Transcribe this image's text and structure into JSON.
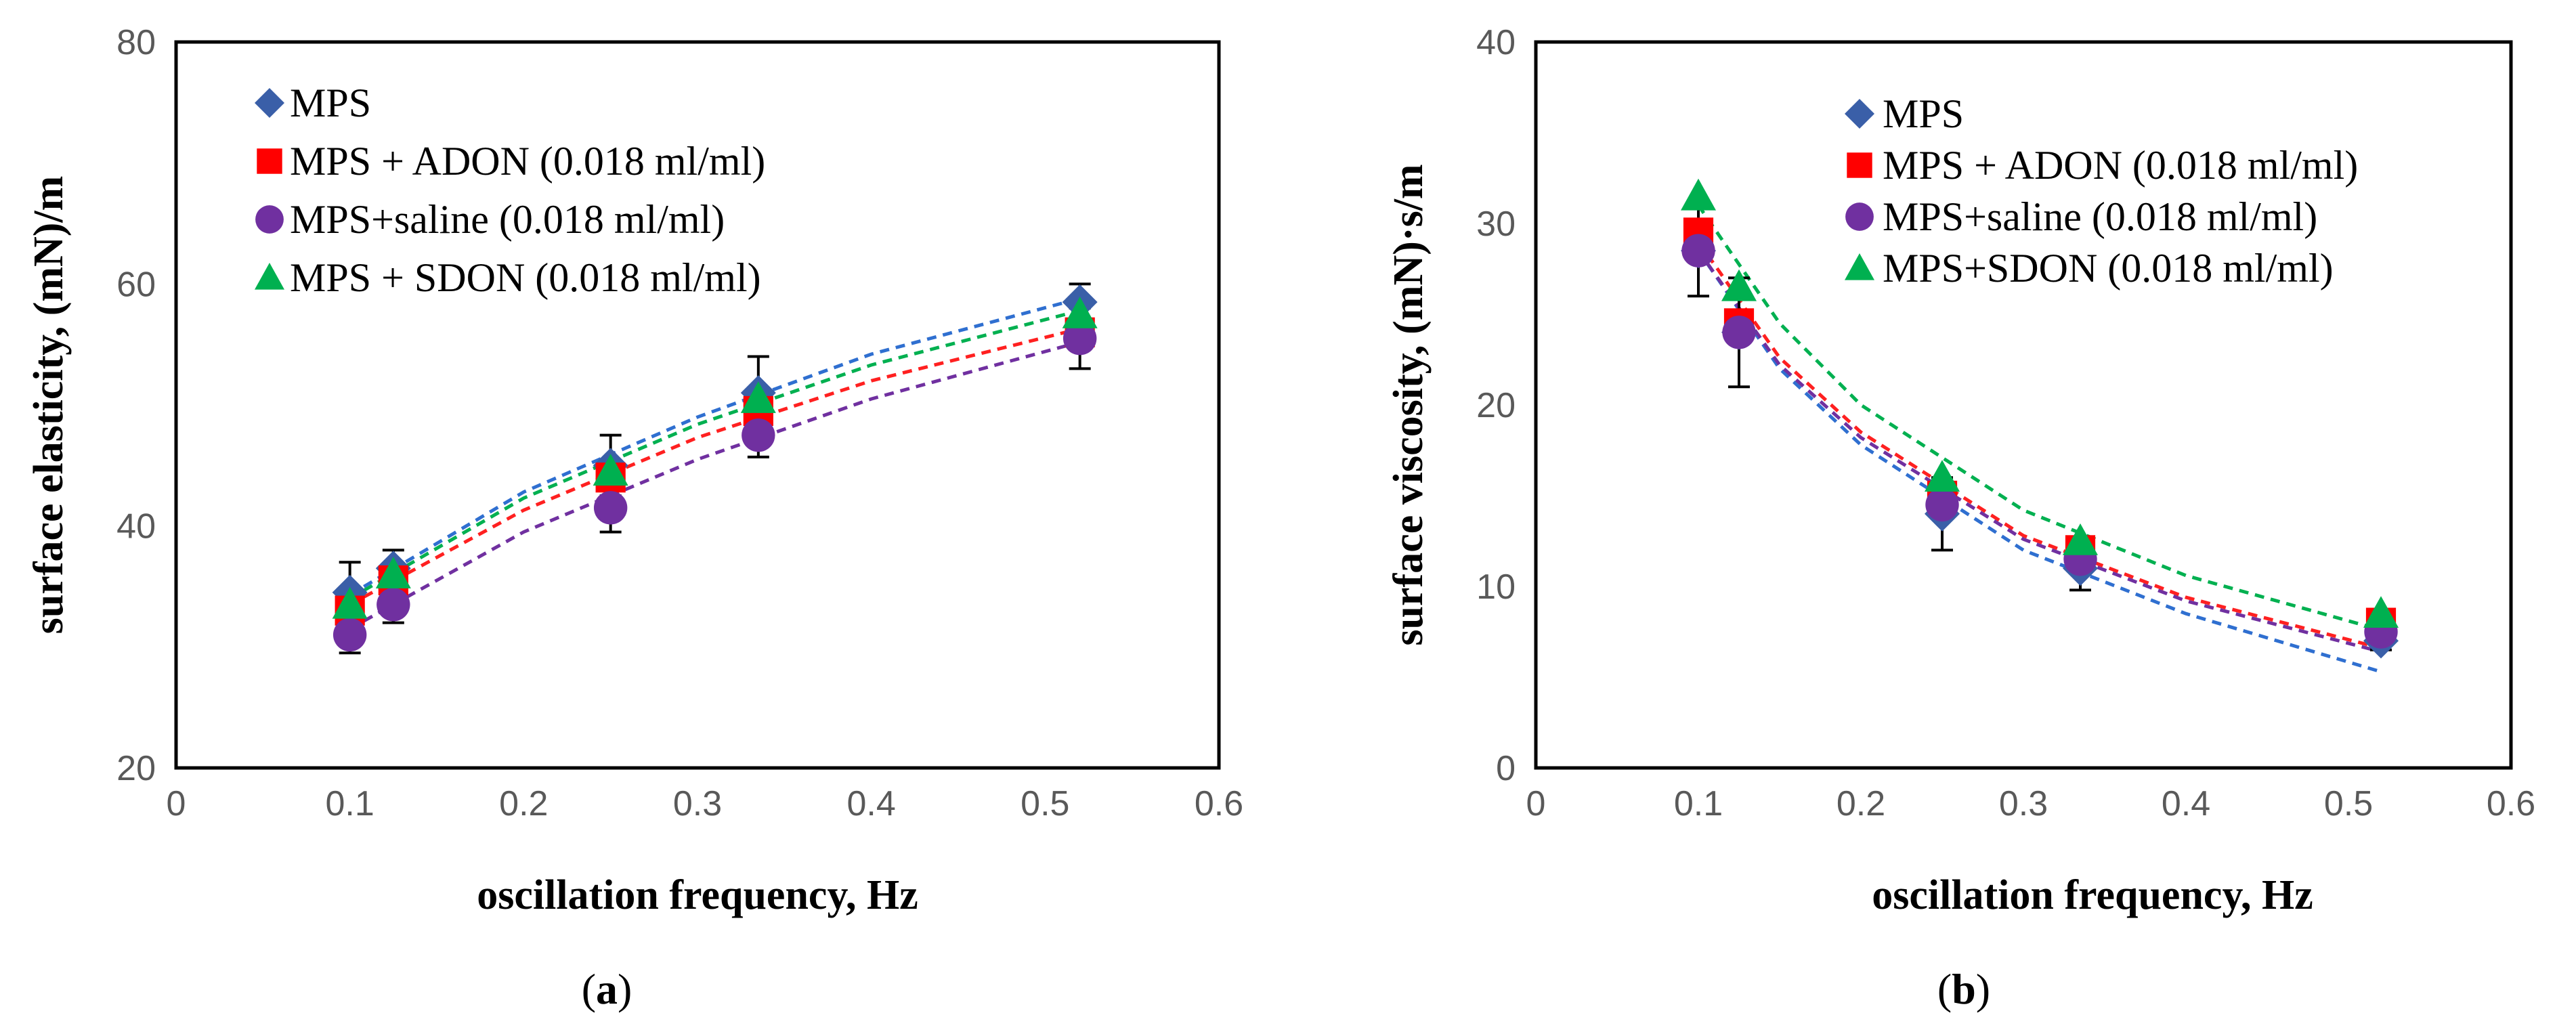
{
  "chart_data": [
    {
      "type": "scatter",
      "caption_letter": "a",
      "xlabel": "oscillation frequency, Hz",
      "ylabel": "surface elasticity, (mN)/m",
      "xlim": [
        0,
        0.6
      ],
      "ylim": [
        20,
        80
      ],
      "xticks": [
        0,
        0.1,
        0.2,
        0.3,
        0.4,
        0.5,
        0.6
      ],
      "yticks": [
        20,
        40,
        60,
        80
      ],
      "xtick_labels": [
        "0",
        "0.1",
        "0.2",
        "0.3",
        "0.4",
        "0.5",
        "0.6"
      ],
      "ytick_labels": [
        "20",
        "40",
        "60",
        "80"
      ],
      "legend_position": "top-left",
      "series": [
        {
          "name": "MPS",
          "marker": "diamond",
          "color": "#3a5fa8",
          "trend_color": "#2f6fd0",
          "x": [
            0.1,
            0.125,
            0.25,
            0.335,
            0.52
          ],
          "y": [
            34.5,
            36.5,
            45.0,
            51.0,
            58.5
          ],
          "err": [
            2.5,
            1.5,
            2.5,
            3.0,
            1.5
          ],
          "trend": [
            [
              0.1,
              34.3
            ],
            [
              0.2,
              42.8
            ],
            [
              0.3,
              49.0
            ],
            [
              0.4,
              54.2
            ],
            [
              0.52,
              58.8
            ]
          ]
        },
        {
          "name": "MPS + ADON (0.018 ml/ml)",
          "marker": "square",
          "color": "#ff0000",
          "trend_color": "#ff2020",
          "x": [
            0.1,
            0.125,
            0.25,
            0.335,
            0.52
          ],
          "y": [
            33.0,
            35.5,
            44.0,
            49.5,
            56.0
          ],
          "err": [
            0,
            0,
            0,
            0,
            0
          ],
          "trend": [
            [
              0.1,
              33.5
            ],
            [
              0.2,
              41.3
            ],
            [
              0.3,
              47.3
            ],
            [
              0.4,
              52.0
            ],
            [
              0.52,
              56.3
            ]
          ]
        },
        {
          "name": "MPS+saline (0.018 ml/ml)",
          "marker": "circle",
          "color": "#7030a0",
          "trend_color": "#7030a0",
          "x": [
            0.1,
            0.125,
            0.25,
            0.335,
            0.52
          ],
          "y": [
            31.0,
            33.5,
            41.5,
            47.5,
            55.5
          ],
          "err": [
            1.5,
            1.5,
            2.0,
            1.8,
            2.5
          ],
          "trend": [
            [
              0.1,
              31.5
            ],
            [
              0.2,
              39.5
            ],
            [
              0.3,
              45.5
            ],
            [
              0.4,
              50.5
            ],
            [
              0.52,
              55.2
            ]
          ]
        },
        {
          "name": "MPS + SDON (0.018 ml/ml)",
          "marker": "triangle",
          "color": "#00b050",
          "trend_color": "#00b050",
          "x": [
            0.1,
            0.125,
            0.25,
            0.335,
            0.52
          ],
          "y": [
            33.5,
            36.0,
            44.5,
            50.5,
            57.5
          ],
          "err": [
            0,
            0,
            0,
            0,
            0
          ],
          "trend": [
            [
              0.1,
              34.0
            ],
            [
              0.2,
              42.3
            ],
            [
              0.3,
              48.4
            ],
            [
              0.4,
              53.3
            ],
            [
              0.52,
              57.8
            ]
          ]
        }
      ]
    },
    {
      "type": "scatter",
      "caption_letter": "b",
      "xlabel": "oscillation frequency, Hz",
      "ylabel": "surface viscosity, (mN)·s/m",
      "xlim": [
        0,
        0.6
      ],
      "ylim": [
        0,
        40
      ],
      "xticks": [
        0,
        0.1,
        0.2,
        0.3,
        0.4,
        0.5,
        0.6
      ],
      "yticks": [
        0,
        10,
        20,
        30,
        40
      ],
      "xtick_labels": [
        "0",
        "0.1",
        "0.2",
        "0.3",
        "0.4",
        "0.5",
        "0.6"
      ],
      "ytick_labels": [
        "0",
        "10",
        "20",
        "30",
        "40"
      ],
      "legend_position": "top-right",
      "series": [
        {
          "name": "MPS",
          "marker": "diamond",
          "color": "#3a5fa8",
          "trend_color": "#2f6fd0",
          "x": [
            0.1,
            0.125,
            0.25,
            0.335,
            0.52
          ],
          "y": [
            28.5,
            24.0,
            14.0,
            11.0,
            7.0
          ],
          "err": [
            2.5,
            3.0,
            2.0,
            1.2,
            0.5
          ],
          "trend": [
            [
              0.1,
              28.5
            ],
            [
              0.15,
              22.0
            ],
            [
              0.2,
              17.8
            ],
            [
              0.3,
              12.0
            ],
            [
              0.4,
              8.5
            ],
            [
              0.52,
              5.3
            ]
          ]
        },
        {
          "name": "MPS + ADON (0.018 ml/ml)",
          "marker": "square",
          "color": "#ff0000",
          "trend_color": "#ff2020",
          "x": [
            0.1,
            0.125,
            0.25,
            0.335,
            0.52
          ],
          "y": [
            29.5,
            24.5,
            15.0,
            12.0,
            8.0
          ],
          "err": [
            0,
            0,
            0,
            0,
            0
          ],
          "trend": [
            [
              0.1,
              29.0
            ],
            [
              0.15,
              22.6
            ],
            [
              0.2,
              18.5
            ],
            [
              0.3,
              12.8
            ],
            [
              0.4,
              9.4
            ],
            [
              0.52,
              6.6
            ]
          ]
        },
        {
          "name": "MPS+saline (0.018 ml/ml)",
          "marker": "circle",
          "color": "#7030a0",
          "trend_color": "#7030a0",
          "x": [
            0.1,
            0.125,
            0.25,
            0.335,
            0.52
          ],
          "y": [
            28.5,
            24.0,
            14.5,
            11.5,
            7.5
          ],
          "err": [
            0,
            0,
            0,
            0,
            0
          ],
          "trend": [
            [
              0.1,
              28.5
            ],
            [
              0.15,
              22.2
            ],
            [
              0.2,
              18.2
            ],
            [
              0.3,
              12.6
            ],
            [
              0.4,
              9.2
            ],
            [
              0.52,
              6.4
            ]
          ]
        },
        {
          "name": "MPS+SDON (0.018 ml/ml)",
          "marker": "triangle",
          "color": "#00b050",
          "trend_color": "#00b050",
          "x": [
            0.1,
            0.125,
            0.25,
            0.335,
            0.52
          ],
          "y": [
            31.5,
            26.5,
            16.0,
            12.5,
            8.5
          ],
          "err": [
            0,
            0,
            0,
            0,
            0
          ],
          "trend": [
            [
              0.1,
              31.0
            ],
            [
              0.15,
              24.5
            ],
            [
              0.2,
              20.0
            ],
            [
              0.3,
              14.2
            ],
            [
              0.4,
              10.6
            ],
            [
              0.52,
              7.6
            ]
          ]
        }
      ]
    }
  ]
}
